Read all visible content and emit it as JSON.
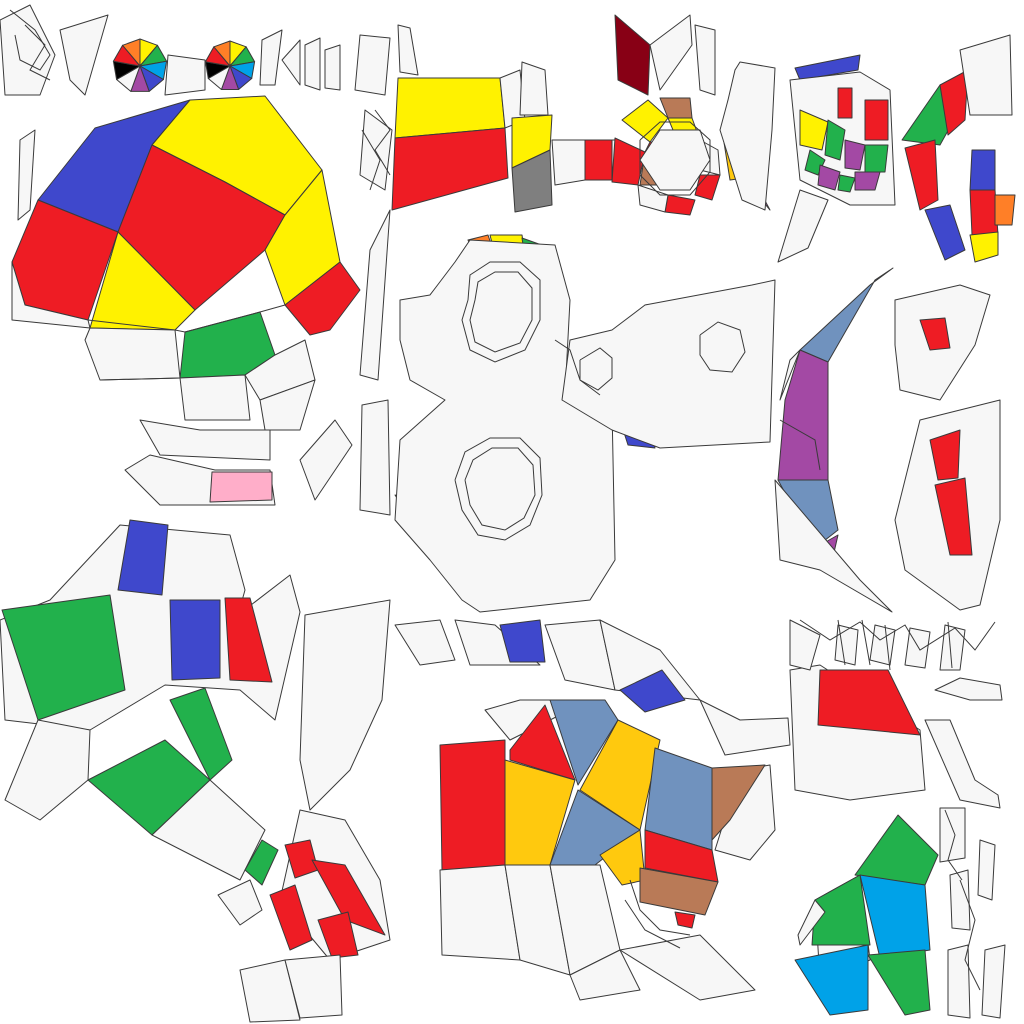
{
  "palette": {
    "white": "#f7f7f7",
    "red": "#ee1c24",
    "yellow": "#fff200",
    "blue": "#3f48cc",
    "green": "#22b14c",
    "orange": "#ff7f27",
    "gold": "#ffc90e",
    "purple": "#a349a4",
    "cyan": "#00a2e8",
    "steel": "#7092be",
    "brown": "#b97a57",
    "pink": "#ffaec9",
    "gray": "#7f7f7f",
    "maroon": "#880015",
    "black": "#000000"
  },
  "icons": {
    "color_wheel_left": "color-wheel-icon",
    "color_wheel_right": "color-wheel-icon"
  }
}
